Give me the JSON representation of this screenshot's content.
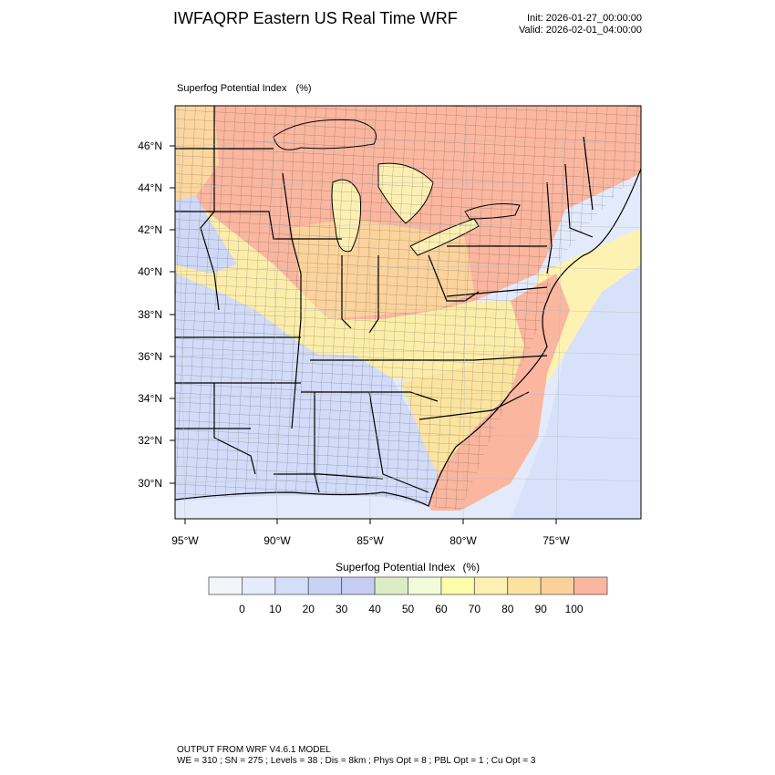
{
  "header": {
    "title": "IWFAQRP Eastern US Real Time WRF",
    "init": "Init: 2026-01-27_00:00:00",
    "valid": "Valid: 2026-02-01_04:00:00"
  },
  "map": {
    "field_name": "Superfog Potential Index",
    "units": "(%)",
    "lat_labels": [
      "46°N",
      "44°N",
      "42°N",
      "40°N",
      "38°N",
      "36°N",
      "34°N",
      "32°N",
      "30°N"
    ],
    "lon_labels": [
      "95°W",
      "90°W",
      "85°W",
      "80°W",
      "75°W"
    ],
    "regions": [
      {
        "id": "lake-ontario-shore",
        "class": "100"
      },
      {
        "id": "mid-atlantic-offshore",
        "class": "60-70"
      },
      {
        "id": "gulf-of-mexico",
        "class": "0-10"
      },
      {
        "id": "southeast-coast",
        "class": "90-100"
      },
      {
        "id": "ohio-valley",
        "class": "90-100"
      },
      {
        "id": "deep-south",
        "class": "0-20"
      }
    ]
  },
  "colorbar": {
    "title": "Superfog Potential Index",
    "units": "(%)",
    "colors": [
      "#f3f5fb",
      "#e5ebfb",
      "#d5def9",
      "#c9d2f4",
      "#c6ccf2",
      "#dcedc5",
      "#f4fbd9",
      "#fcfdab",
      "#fdf0b0",
      "#fbe39f",
      "#fcd19a",
      "#fab69f"
    ],
    "tick_labels": [
      "0",
      "10",
      "20",
      "30",
      "40",
      "50",
      "60",
      "70",
      "80",
      "90",
      "100"
    ]
  },
  "footer": {
    "line1": "OUTPUT FROM WRF V4.6.1 MODEL",
    "line2": "WE = 310 ; SN = 275 ; Levels = 38 ; Dis = 8km ; Phys Opt = 8 ; PBL Opt = 1 ; Cu Opt = 3"
  }
}
